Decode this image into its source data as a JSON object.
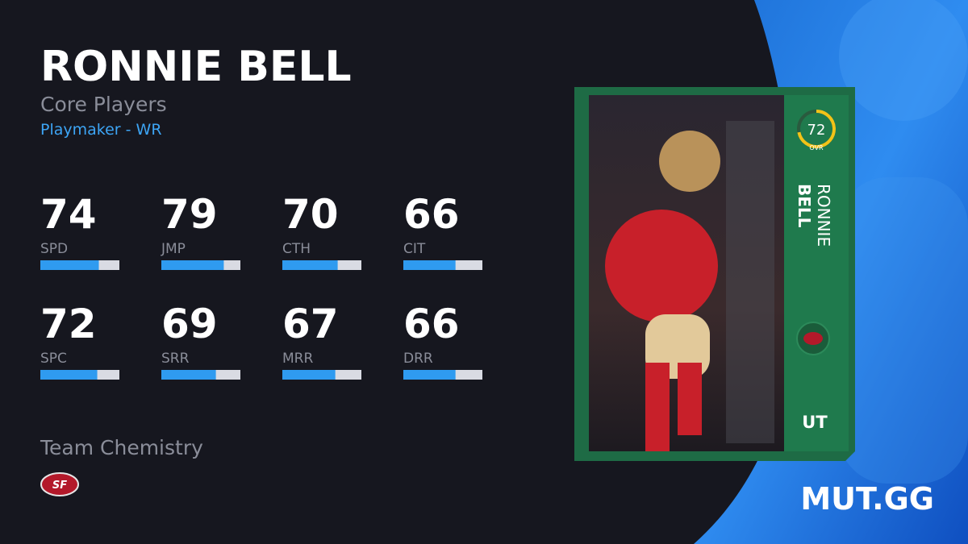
{
  "player": {
    "name": "RONNIE BELL",
    "group": "Core Players",
    "archetype": "Playmaker - WR"
  },
  "stat_range": [
    0,
    100
  ],
  "stats": [
    {
      "value": 74,
      "label": "SPD"
    },
    {
      "value": 79,
      "label": "JMP"
    },
    {
      "value": 70,
      "label": "CTH"
    },
    {
      "value": 66,
      "label": "CIT"
    },
    {
      "value": 72,
      "label": "SPC"
    },
    {
      "value": 69,
      "label": "SRR"
    },
    {
      "value": 67,
      "label": "MRR"
    },
    {
      "value": 66,
      "label": "DRR"
    }
  ],
  "chemistry_title": "Team Chemistry",
  "card": {
    "ovr": 72,
    "ovr_label": "OVR",
    "first_name": "RONNIE",
    "last_name": "BELL",
    "program": "UT"
  },
  "brand": "MUT.GG"
}
